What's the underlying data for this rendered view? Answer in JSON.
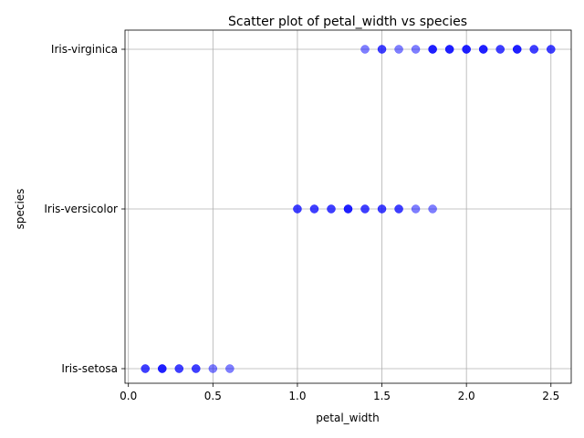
{
  "chart_data": {
    "type": "scatter",
    "title": "Scatter plot of petal_width vs species",
    "xlabel": "petal_width",
    "ylabel": "species",
    "xlim": [
      -0.02,
      2.62
    ],
    "x_ticks": [
      0.0,
      0.5,
      1.0,
      1.5,
      2.0,
      2.5
    ],
    "x_tick_labels": [
      "0.0",
      "0.5",
      "1.0",
      "1.5",
      "2.0",
      "2.5"
    ],
    "categories": [
      "Iris-setosa",
      "Iris-versicolor",
      "Iris-virginica"
    ],
    "grid": true,
    "point_color": "#0000ff",
    "point_alpha": 0.5,
    "series": [
      {
        "points": [
          {
            "x": 0.1,
            "y": "Iris-setosa"
          },
          {
            "x": 0.1,
            "y": "Iris-setosa"
          },
          {
            "x": 0.2,
            "y": "Iris-setosa"
          },
          {
            "x": 0.2,
            "y": "Iris-setosa"
          },
          {
            "x": 0.2,
            "y": "Iris-setosa"
          },
          {
            "x": 0.3,
            "y": "Iris-setosa"
          },
          {
            "x": 0.3,
            "y": "Iris-setosa"
          },
          {
            "x": 0.4,
            "y": "Iris-setosa"
          },
          {
            "x": 0.4,
            "y": "Iris-setosa"
          },
          {
            "x": 0.5,
            "y": "Iris-setosa"
          },
          {
            "x": 0.6,
            "y": "Iris-setosa"
          },
          {
            "x": 1.0,
            "y": "Iris-versicolor"
          },
          {
            "x": 1.0,
            "y": "Iris-versicolor"
          },
          {
            "x": 1.1,
            "y": "Iris-versicolor"
          },
          {
            "x": 1.1,
            "y": "Iris-versicolor"
          },
          {
            "x": 1.2,
            "y": "Iris-versicolor"
          },
          {
            "x": 1.2,
            "y": "Iris-versicolor"
          },
          {
            "x": 1.3,
            "y": "Iris-versicolor"
          },
          {
            "x": 1.3,
            "y": "Iris-versicolor"
          },
          {
            "x": 1.3,
            "y": "Iris-versicolor"
          },
          {
            "x": 1.4,
            "y": "Iris-versicolor"
          },
          {
            "x": 1.4,
            "y": "Iris-versicolor"
          },
          {
            "x": 1.5,
            "y": "Iris-versicolor"
          },
          {
            "x": 1.5,
            "y": "Iris-versicolor"
          },
          {
            "x": 1.6,
            "y": "Iris-versicolor"
          },
          {
            "x": 1.6,
            "y": "Iris-versicolor"
          },
          {
            "x": 1.7,
            "y": "Iris-versicolor"
          },
          {
            "x": 1.8,
            "y": "Iris-versicolor"
          },
          {
            "x": 1.4,
            "y": "Iris-virginica"
          },
          {
            "x": 1.5,
            "y": "Iris-virginica"
          },
          {
            "x": 1.5,
            "y": "Iris-virginica"
          },
          {
            "x": 1.6,
            "y": "Iris-virginica"
          },
          {
            "x": 1.7,
            "y": "Iris-virginica"
          },
          {
            "x": 1.8,
            "y": "Iris-virginica"
          },
          {
            "x": 1.8,
            "y": "Iris-virginica"
          },
          {
            "x": 1.8,
            "y": "Iris-virginica"
          },
          {
            "x": 1.9,
            "y": "Iris-virginica"
          },
          {
            "x": 1.9,
            "y": "Iris-virginica"
          },
          {
            "x": 1.9,
            "y": "Iris-virginica"
          },
          {
            "x": 2.0,
            "y": "Iris-virginica"
          },
          {
            "x": 2.0,
            "y": "Iris-virginica"
          },
          {
            "x": 2.0,
            "y": "Iris-virginica"
          },
          {
            "x": 2.1,
            "y": "Iris-virginica"
          },
          {
            "x": 2.1,
            "y": "Iris-virginica"
          },
          {
            "x": 2.1,
            "y": "Iris-virginica"
          },
          {
            "x": 2.2,
            "y": "Iris-virginica"
          },
          {
            "x": 2.2,
            "y": "Iris-virginica"
          },
          {
            "x": 2.3,
            "y": "Iris-virginica"
          },
          {
            "x": 2.3,
            "y": "Iris-virginica"
          },
          {
            "x": 2.3,
            "y": "Iris-virginica"
          },
          {
            "x": 2.4,
            "y": "Iris-virginica"
          },
          {
            "x": 2.4,
            "y": "Iris-virginica"
          },
          {
            "x": 2.5,
            "y": "Iris-virginica"
          },
          {
            "x": 2.5,
            "y": "Iris-virginica"
          }
        ]
      }
    ]
  }
}
